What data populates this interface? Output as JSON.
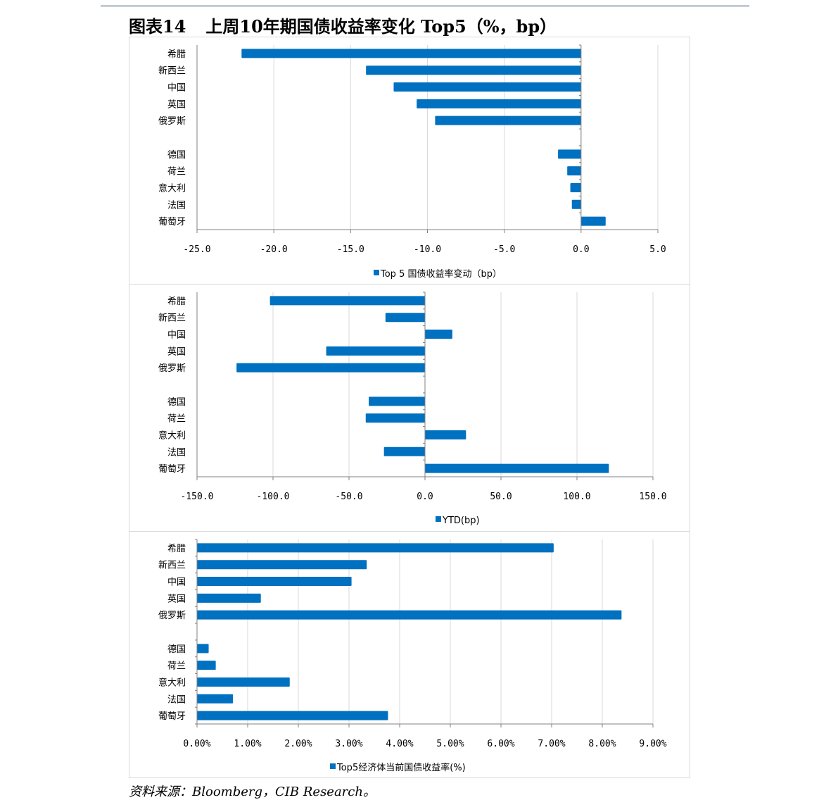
{
  "title": {
    "figure_no": "图表14",
    "text": "上周10年期国债收益率变化 Top5（%，bp）"
  },
  "source": "资料来源：Bloomberg，CIB Research。",
  "colors": {
    "bar": "#0070c0",
    "grid": "#d9d9d9",
    "axis": "#808080"
  },
  "chart_data": [
    {
      "type": "bar",
      "orientation": "horizontal",
      "categories": [
        "希腊",
        "新西兰",
        "中国",
        "英国",
        "俄罗斯",
        "",
        "德国",
        "荷兰",
        "意大利",
        "法国",
        "葡萄牙"
      ],
      "series": [
        {
          "name": "Top 5 国债收益率变动（bp）",
          "values": [
            -22.1,
            -14.0,
            -12.2,
            -10.7,
            -9.5,
            null,
            -1.5,
            -0.9,
            -0.7,
            -0.6,
            1.6
          ]
        }
      ],
      "xlim": [
        -25,
        5
      ],
      "xticks": [
        -25,
        -20,
        -15,
        -10,
        -5,
        0,
        5
      ],
      "tick_labels": [
        "-25.0",
        "-20.0",
        "-15.0",
        "-10.0",
        "-5.0",
        "0.0",
        "5.0"
      ],
      "grid": true,
      "legend": "bottom"
    },
    {
      "type": "bar",
      "orientation": "horizontal",
      "categories": [
        "希腊",
        "新西兰",
        "中国",
        "英国",
        "俄罗斯",
        "",
        "德国",
        "荷兰",
        "意大利",
        "法国",
        "葡萄牙"
      ],
      "series": [
        {
          "name": "YTD(bp)",
          "values": [
            -102,
            -26,
            18,
            -65,
            -124,
            null,
            -37,
            -39,
            27,
            -27,
            121
          ]
        }
      ],
      "xlim": [
        -150,
        150
      ],
      "xticks": [
        -150,
        -100,
        -50,
        0,
        50,
        100,
        150
      ],
      "tick_labels": [
        "-150.0",
        "-100.0",
        "-50.0",
        "0.0",
        "50.0",
        "100.0",
        "150.0"
      ],
      "grid": true,
      "legend": "bottom"
    },
    {
      "type": "bar",
      "orientation": "horizontal",
      "categories": [
        "希腊",
        "新西兰",
        "中国",
        "英国",
        "俄罗斯",
        "",
        "德国",
        "荷兰",
        "意大利",
        "法国",
        "葡萄牙"
      ],
      "series": [
        {
          "name": "Top5经济体当前国债收益率(%)",
          "values": [
            7.04,
            3.35,
            3.05,
            1.26,
            8.38,
            null,
            0.23,
            0.37,
            1.83,
            0.71,
            3.77
          ]
        }
      ],
      "xlim": [
        0,
        9
      ],
      "xticks": [
        0,
        1,
        2,
        3,
        4,
        5,
        6,
        7,
        8,
        9
      ],
      "tick_labels": [
        "0.00%",
        "1.00%",
        "2.00%",
        "3.00%",
        "4.00%",
        "5.00%",
        "6.00%",
        "7.00%",
        "8.00%",
        "9.00%"
      ],
      "grid": true,
      "legend": "bottom"
    }
  ]
}
